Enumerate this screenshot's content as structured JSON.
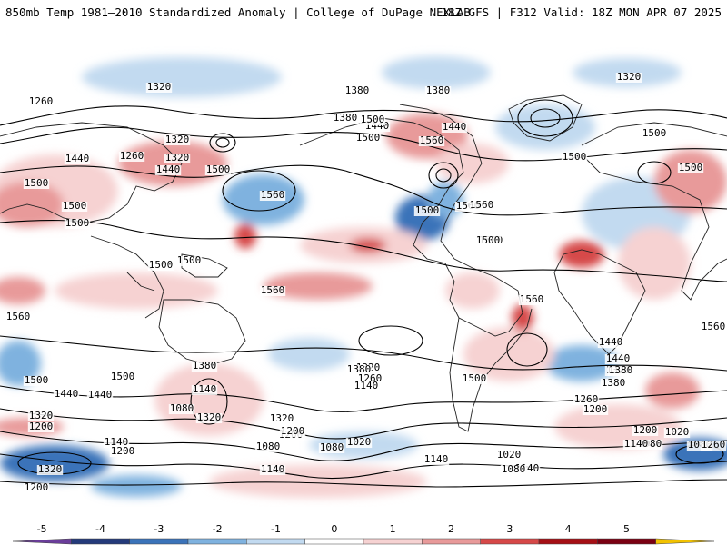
{
  "header": {
    "left_title": "850mb Temp 1981–2010 Standardized Anomaly | College of DuPage NEXLAB",
    "right_title": "18Z GFS | F312 Valid: 18Z MON APR 07 2025"
  },
  "map": {
    "projection": "global-equirectangular",
    "contour_labels": [
      "1320",
      "1380",
      "1380",
      "1260",
      "1320",
      "1380",
      "1440",
      "1440",
      "1500",
      "1560",
      "1320",
      "1440",
      "1260",
      "1320",
      "1440",
      "1500",
      "1560",
      "1560",
      "1500",
      "1500",
      "1500",
      "1500",
      "1500",
      "1500",
      "1500",
      "1560",
      "1560",
      "1440",
      "1380",
      "1320",
      "1500",
      "1440",
      "1140",
      "1080",
      "1320",
      "1200",
      "1320",
      "1200",
      "1140",
      "1380",
      "1320",
      "1200",
      "1140",
      "1200",
      "1320",
      "1080",
      "1020",
      "1080",
      "1140",
      "1140",
      "1080",
      "1200",
      "1260",
      "1080",
      "1140",
      "1200",
      "1020",
      "1080",
      "1200",
      "1260",
      "1560",
      "1500",
      "1560",
      "1500",
      "1500",
      "1500",
      "1500",
      "1500",
      "1440",
      "1380",
      "1380",
      "1260",
      "1140",
      "1020",
      "1320",
      "1440",
      "1500",
      "1560"
    ]
  },
  "colorbar": {
    "ticks": [
      "-5",
      "-4",
      "-3",
      "-2",
      "-1",
      "0",
      "1",
      "2",
      "3",
      "4",
      "5"
    ],
    "colors": [
      "#6a3d9a",
      "#243a7a",
      "#3b73b9",
      "#7fb2df",
      "#c2daf0",
      "#ffffff",
      "#f6d2d2",
      "#e89a9a",
      "#d64848",
      "#a50f15",
      "#7a0012",
      "#f2c200"
    ]
  }
}
